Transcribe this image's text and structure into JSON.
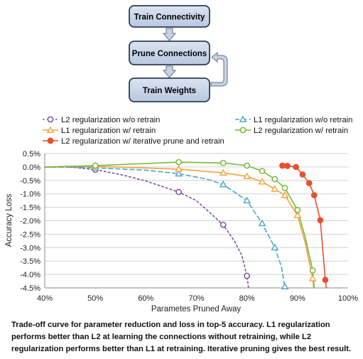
{
  "colors": {
    "box_fill": "#c6d3e6",
    "box_stroke": "#2f3f57",
    "arrow_fill": "#c6d3e6",
    "arrow_stroke": "#6b7080",
    "grid": "#d0d0d0",
    "background": "#ffffff"
  },
  "diagram": {
    "nodes": [
      "Train Connectivity",
      "Prune Connections",
      "Train Weights"
    ]
  },
  "caption": "Trade-off curve for parameter reduction and loss in top-5 accuracy. L1 regularization performs better than L2 at learning the connections without retraining, while L2 regularization performs better than L1 at retraining. Iterative pruning gives the best result.",
  "chart_data": {
    "type": "line",
    "title": "",
    "xlabel": "Parametes Pruned Away",
    "ylabel": "Accuracy Loss",
    "xlim": [
      0.4,
      1.0
    ],
    "ylim": [
      -0.045,
      0.005
    ],
    "x_ticks": [
      0.4,
      0.5,
      0.6,
      0.7,
      0.8,
      0.9,
      1.0
    ],
    "x_tick_labels": [
      "40%",
      "50%",
      "60%",
      "70%",
      "80%",
      "90%",
      "100%"
    ],
    "y_ticks": [
      0.005,
      0.0,
      -0.005,
      -0.01,
      -0.015,
      -0.02,
      -0.025,
      -0.03,
      -0.035,
      -0.04,
      -0.045
    ],
    "y_tick_labels": [
      "0.5%",
      "0.0%",
      "-0.5%",
      "-1.0%",
      "-1.5%",
      "-2.0%",
      "-2.5%",
      "-3.0%",
      "-3.5%",
      "-4.0%",
      "-4.5%"
    ],
    "grid": "horizontal",
    "legend_position": "top",
    "series": [
      {
        "name": "L2 regularization w/o retrain",
        "color": "#7b4fa3",
        "dash": "dotted",
        "marker": "circle-open",
        "points": [
          [
            0.4,
            0.0
          ],
          [
            0.5,
            -0.001
          ],
          [
            0.665,
            -0.0093
          ],
          [
            0.753,
            -0.0215
          ],
          [
            0.8,
            -0.0405
          ]
        ],
        "curve": [
          [
            0.4,
            0.0
          ],
          [
            0.45,
            0.0
          ],
          [
            0.5,
            -0.001
          ],
          [
            0.55,
            -0.0028
          ],
          [
            0.6,
            -0.0052
          ],
          [
            0.665,
            -0.0093
          ],
          [
            0.7,
            -0.0125
          ],
          [
            0.753,
            -0.0215
          ],
          [
            0.775,
            -0.0275
          ],
          [
            0.79,
            -0.033
          ],
          [
            0.8,
            -0.0405
          ],
          [
            0.803,
            -0.045
          ]
        ]
      },
      {
        "name": "L1 regularization w/o retrain",
        "color": "#4aa5c8",
        "dash": "dashed",
        "marker": "triangle-open",
        "points": [
          [
            0.4,
            0.0
          ],
          [
            0.5,
            -0.0003
          ],
          [
            0.665,
            -0.0025
          ],
          [
            0.753,
            -0.0065
          ],
          [
            0.8,
            -0.0125
          ],
          [
            0.83,
            -0.021
          ],
          [
            0.855,
            -0.03
          ],
          [
            0.875,
            -0.0445
          ]
        ],
        "curve": [
          [
            0.4,
            0.0
          ],
          [
            0.5,
            -0.0003
          ],
          [
            0.6,
            -0.0012
          ],
          [
            0.665,
            -0.0025
          ],
          [
            0.72,
            -0.0045
          ],
          [
            0.753,
            -0.0065
          ],
          [
            0.8,
            -0.0125
          ],
          [
            0.83,
            -0.021
          ],
          [
            0.855,
            -0.03
          ],
          [
            0.868,
            -0.037
          ],
          [
            0.875,
            -0.0445
          ],
          [
            0.876,
            -0.045
          ]
        ]
      },
      {
        "name": "L1 regularization w/ retrain",
        "color": "#f5a23a",
        "dash": "solid",
        "marker": "triangle-open",
        "points": [
          [
            0.4,
            0.0
          ],
          [
            0.5,
            0.0003
          ],
          [
            0.665,
            -0.0008
          ],
          [
            0.753,
            -0.0022
          ],
          [
            0.8,
            -0.0035
          ],
          [
            0.83,
            -0.0055
          ],
          [
            0.855,
            -0.0082
          ],
          [
            0.875,
            -0.0105
          ],
          [
            0.9,
            -0.018
          ],
          [
            0.93,
            -0.0415
          ]
        ],
        "curve": [
          [
            0.4,
            0.0
          ],
          [
            0.5,
            0.0003
          ],
          [
            0.665,
            -0.0008
          ],
          [
            0.753,
            -0.0022
          ],
          [
            0.8,
            -0.0035
          ],
          [
            0.83,
            -0.0055
          ],
          [
            0.855,
            -0.0082
          ],
          [
            0.875,
            -0.0105
          ],
          [
            0.9,
            -0.018
          ],
          [
            0.915,
            -0.028
          ],
          [
            0.93,
            -0.0415
          ],
          [
            0.932,
            -0.045
          ]
        ]
      },
      {
        "name": "L2 regularization w/ retrain",
        "color": "#77b83a",
        "dash": "solid",
        "marker": "circle-open",
        "points": [
          [
            0.4,
            0.0
          ],
          [
            0.5,
            0.0005
          ],
          [
            0.665,
            0.0018
          ],
          [
            0.753,
            0.0015
          ],
          [
            0.8,
            0.0005
          ],
          [
            0.83,
            -0.0015
          ],
          [
            0.855,
            -0.0045
          ],
          [
            0.875,
            -0.0078
          ],
          [
            0.9,
            -0.016
          ],
          [
            0.93,
            -0.0385
          ]
        ],
        "curve": [
          [
            0.4,
            0.0
          ],
          [
            0.5,
            0.0005
          ],
          [
            0.665,
            0.0018
          ],
          [
            0.753,
            0.0015
          ],
          [
            0.8,
            0.0005
          ],
          [
            0.83,
            -0.0015
          ],
          [
            0.855,
            -0.0045
          ],
          [
            0.875,
            -0.0078
          ],
          [
            0.9,
            -0.016
          ],
          [
            0.915,
            -0.026
          ],
          [
            0.93,
            -0.0385
          ],
          [
            0.933,
            -0.045
          ]
        ]
      },
      {
        "name": "L2 regularization w/ iterative prune and retrain",
        "color": "#e8502c",
        "dash": "solid",
        "marker": "circle-filled",
        "points": [
          [
            0.87,
            0.0005
          ],
          [
            0.88,
            0.0004
          ],
          [
            0.897,
            0.0
          ],
          [
            0.91,
            -0.0028
          ],
          [
            0.923,
            -0.006
          ],
          [
            0.933,
            -0.0105
          ],
          [
            0.945,
            -0.0198
          ],
          [
            0.955,
            -0.042
          ]
        ],
        "curve": [
          [
            0.87,
            0.0005
          ],
          [
            0.88,
            0.0004
          ],
          [
            0.897,
            0.0
          ],
          [
            0.91,
            -0.0028
          ],
          [
            0.923,
            -0.006
          ],
          [
            0.933,
            -0.0105
          ],
          [
            0.945,
            -0.0198
          ],
          [
            0.955,
            -0.042
          ],
          [
            0.957,
            -0.045
          ]
        ]
      }
    ]
  }
}
